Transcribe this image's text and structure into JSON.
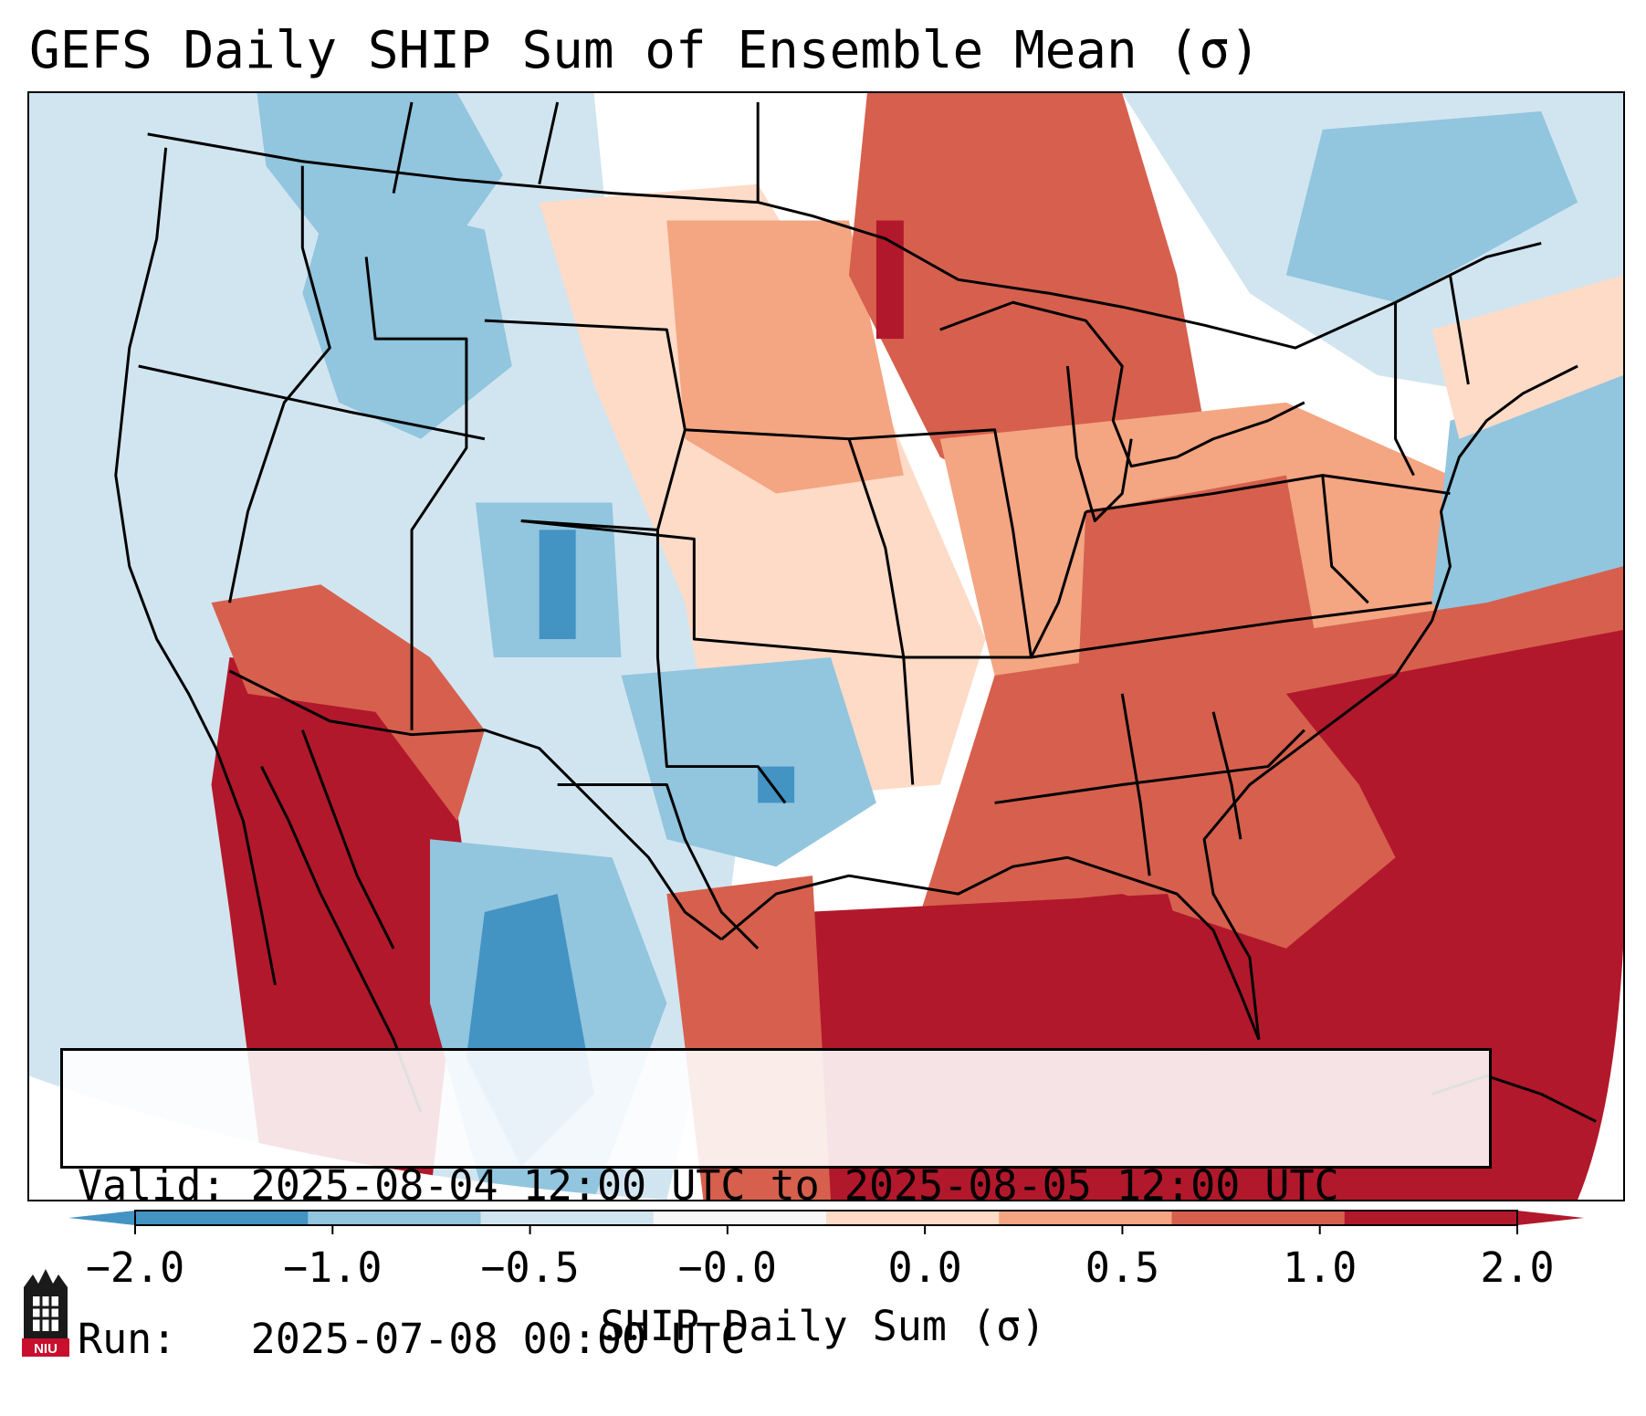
{
  "title": "GEFS Daily SHIP Sum of Ensemble Mean (σ)",
  "valid_text": "Valid: 2025-08-04 12:00 UTC to 2025-08-05 12:00 UTC",
  "run_text": "Run:   2025-07-08 00:00 UTC",
  "colorbar": {
    "label": "SHIP Daily Sum (σ)",
    "ticks": [
      "−2.0",
      "−1.0",
      "−0.5",
      "−0.0",
      "0.0",
      "0.5",
      "1.0",
      "2.0"
    ],
    "colors": [
      "#4393c3",
      "#92c5de",
      "#d1e5f0",
      "#f7f7f7",
      "#fddbc7",
      "#f4a582",
      "#d6604d",
      "#b2182b"
    ],
    "extend": "both"
  },
  "palette": {
    "deep_blue": "#4393c3",
    "mid_blue": "#92c5de",
    "light_blue": "#d1e5f0",
    "neutral": "#f7f7f7",
    "light_red": "#fddbc7",
    "mid_red": "#f4a582",
    "strong_red": "#d6604d",
    "deep_red": "#b2182b",
    "boundary": "#000000"
  },
  "logo": {
    "icon": "niu-logo-icon",
    "text": "NIU"
  }
}
